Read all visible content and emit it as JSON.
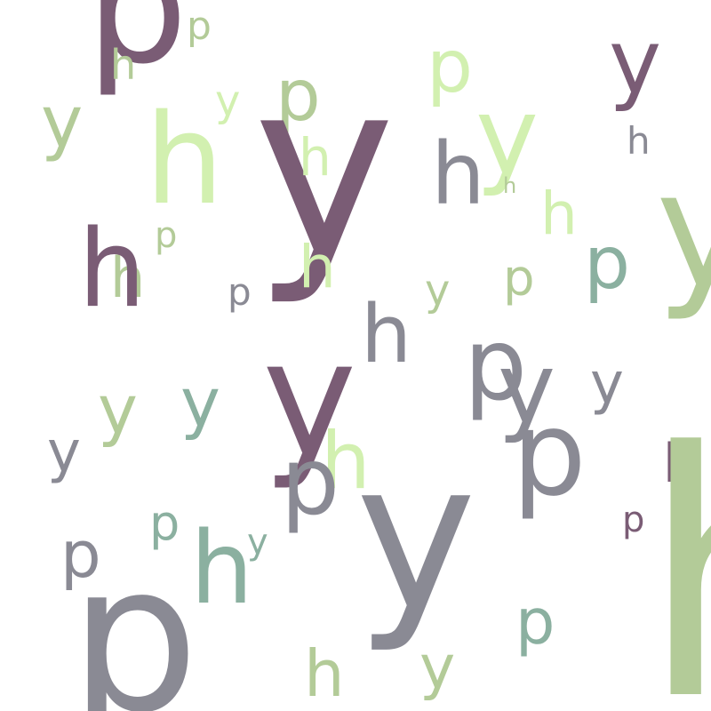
{
  "palette": {
    "plum": "#7a5c75",
    "gray": "#8a8a94",
    "sage": "#b3cb98",
    "lime": "#d2f0b0",
    "teal": "#8bb0a0"
  },
  "letters": [
    {
      "id": "l01",
      "char": "p",
      "color": "plum"
    },
    {
      "id": "l02",
      "char": "p",
      "color": "sage"
    },
    {
      "id": "l03",
      "char": "h",
      "color": "sage"
    },
    {
      "id": "l04",
      "char": "y",
      "color": "plum"
    },
    {
      "id": "l05",
      "char": "p",
      "color": "lime"
    },
    {
      "id": "l06",
      "char": "y",
      "color": "sage"
    },
    {
      "id": "l07",
      "char": "y",
      "color": "lime"
    },
    {
      "id": "l08",
      "char": "p",
      "color": "sage"
    },
    {
      "id": "l09",
      "char": "h",
      "color": "lime"
    },
    {
      "id": "l10",
      "char": "y",
      "color": "plum"
    },
    {
      "id": "l11",
      "char": "h",
      "color": "lime"
    },
    {
      "id": "l12",
      "char": "y",
      "color": "lime"
    },
    {
      "id": "l13",
      "char": "h",
      "color": "gray"
    },
    {
      "id": "l14",
      "char": "h",
      "color": "gray"
    },
    {
      "id": "l15",
      "char": "h",
      "color": "sage"
    },
    {
      "id": "l16",
      "char": "h",
      "color": "lime"
    },
    {
      "id": "l17",
      "char": "y",
      "color": "sage"
    },
    {
      "id": "l18",
      "char": "p",
      "color": "sage"
    },
    {
      "id": "l19",
      "char": "h",
      "color": "sage"
    },
    {
      "id": "l20",
      "char": "h",
      "color": "plum"
    },
    {
      "id": "l21",
      "char": "h",
      "color": "lime"
    },
    {
      "id": "l22",
      "char": "p",
      "color": "teal"
    },
    {
      "id": "l23",
      "char": "p",
      "color": "gray"
    },
    {
      "id": "l24",
      "char": "y",
      "color": "sage"
    },
    {
      "id": "l25",
      "char": "p",
      "color": "sage"
    },
    {
      "id": "l26",
      "char": "h",
      "color": "gray"
    },
    {
      "id": "l27",
      "char": "p",
      "color": "gray"
    },
    {
      "id": "l28",
      "char": "y",
      "color": "gray"
    },
    {
      "id": "l29",
      "char": "y",
      "color": "gray"
    },
    {
      "id": "l30",
      "char": "y",
      "color": "sage"
    },
    {
      "id": "l31",
      "char": "y",
      "color": "teal"
    },
    {
      "id": "l32",
      "char": "y",
      "color": "plum"
    },
    {
      "id": "l33",
      "char": "y",
      "color": "gray"
    },
    {
      "id": "l34",
      "char": "h",
      "color": "lime"
    },
    {
      "id": "l35",
      "char": "p",
      "color": "gray"
    },
    {
      "id": "l36",
      "char": "p",
      "color": "gray"
    },
    {
      "id": "l37",
      "char": "h",
      "color": "plum"
    },
    {
      "id": "l38",
      "char": "y",
      "color": "gray"
    },
    {
      "id": "l39",
      "char": "h",
      "color": "sage"
    },
    {
      "id": "l40",
      "char": "p",
      "color": "plum"
    },
    {
      "id": "l41",
      "char": "p",
      "color": "teal"
    },
    {
      "id": "l42",
      "char": "p",
      "color": "gray"
    },
    {
      "id": "l43",
      "char": "y",
      "color": "teal"
    },
    {
      "id": "l44",
      "char": "h",
      "color": "teal"
    },
    {
      "id": "l45",
      "char": "p",
      "color": "gray"
    },
    {
      "id": "l46",
      "char": "p",
      "color": "teal"
    },
    {
      "id": "l47",
      "char": "h",
      "color": "sage"
    },
    {
      "id": "l48",
      "char": "y",
      "color": "sage"
    }
  ]
}
